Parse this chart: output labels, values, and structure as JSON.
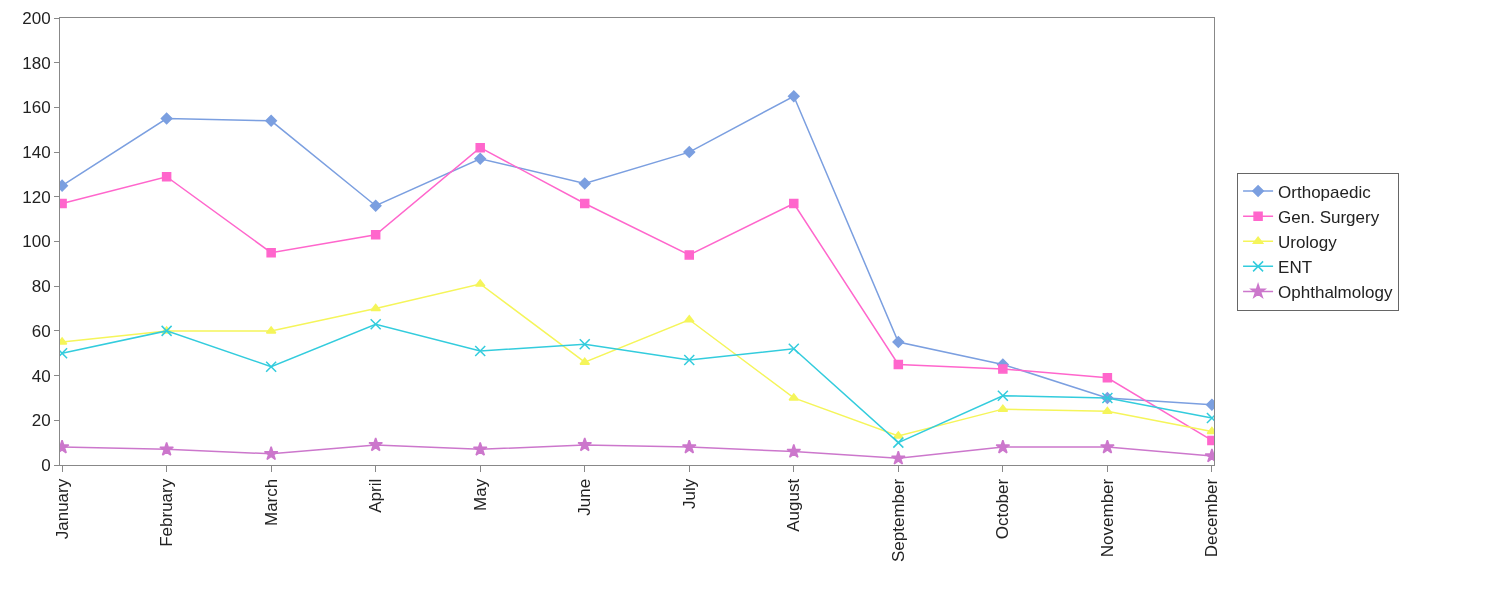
{
  "chart_data": {
    "type": "line",
    "categories": [
      "January",
      "February",
      "March",
      "April",
      "May",
      "June",
      "July",
      "August",
      "September",
      "October",
      "November",
      "December"
    ],
    "series": [
      {
        "name": "Orthopaedic",
        "color": "#7b9fe0",
        "marker": "diamond",
        "values": [
          125,
          155,
          154,
          116,
          137,
          126,
          140,
          165,
          55,
          45,
          30,
          27
        ]
      },
      {
        "name": "Gen. Surgery",
        "color": "#ff66cc",
        "marker": "square",
        "values": [
          117,
          129,
          95,
          103,
          142,
          117,
          94,
          117,
          45,
          43,
          39,
          11
        ]
      },
      {
        "name": "Urology",
        "color": "#f5f55a",
        "marker": "triangle",
        "values": [
          55,
          60,
          60,
          70,
          81,
          46,
          65,
          30,
          13,
          25,
          24,
          15
        ]
      },
      {
        "name": "ENT",
        "color": "#33ccdd",
        "marker": "cross",
        "values": [
          50,
          60,
          44,
          63,
          51,
          54,
          47,
          52,
          10,
          31,
          30,
          21
        ]
      },
      {
        "name": "Ophthalmology",
        "color": "#cc77cc",
        "marker": "star",
        "values": [
          8,
          7,
          5,
          9,
          7,
          9,
          8,
          6,
          3,
          8,
          8,
          4
        ]
      }
    ],
    "ylim": [
      0,
      200
    ],
    "yticks": [
      0,
      20,
      40,
      60,
      80,
      100,
      120,
      140,
      160,
      180,
      200
    ],
    "grid": false,
    "legend": "right",
    "line_style": "solid"
  }
}
